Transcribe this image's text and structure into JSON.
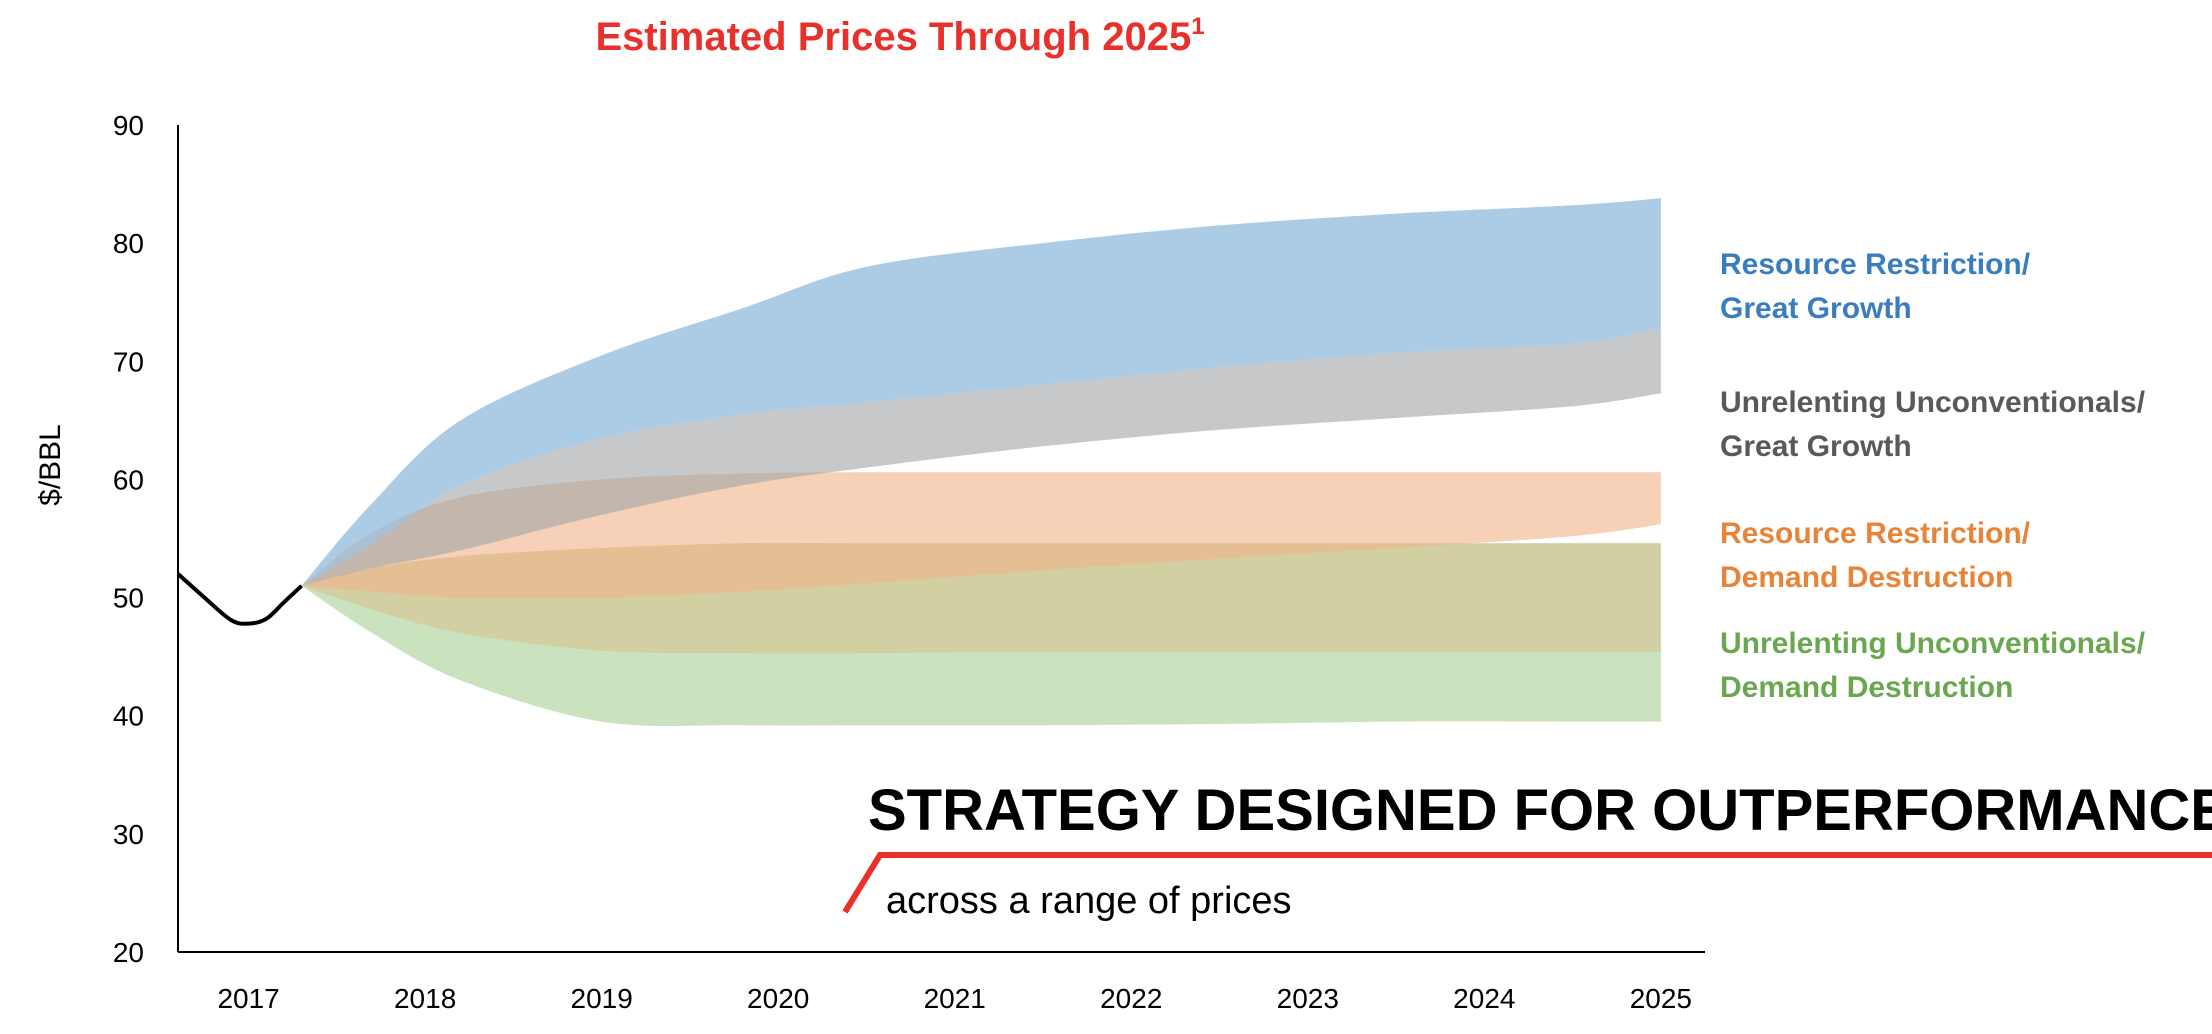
{
  "chart_data": {
    "type": "area",
    "title": "Estimated Prices Through 2025",
    "title_superscript": "1",
    "title_color": "#e8312a",
    "ylabel": "$/BBL",
    "xlabel": "",
    "ylim": [
      20,
      90
    ],
    "yticks": [
      "20",
      "30",
      "40",
      "50",
      "60",
      "70",
      "80",
      "90"
    ],
    "xlim": [
      2016.6,
      2025.25
    ],
    "xticks": [
      "2017",
      "2018",
      "2019",
      "2020",
      "2021",
      "2022",
      "2023",
      "2024",
      "2025"
    ],
    "grid": false,
    "historical": {
      "x": [
        2016.6,
        2016.75,
        2016.9,
        2017.0,
        2017.1,
        2017.2,
        2017.3
      ],
      "y": [
        52,
        50,
        48.1,
        47.8,
        48.2,
        49.6,
        51
      ]
    },
    "series": [
      {
        "name": "Resource Restriction/ Great Growth",
        "legend_lines": [
          "Resource Restriction/",
          "Great Growth"
        ],
        "color": "#3a7dbf",
        "fill": "#8cb8db",
        "opacity": 0.72,
        "x": [
          2017.3,
          2017.7,
          2018.2,
          2019.0,
          2019.8,
          2020.5,
          2021.5,
          2022.5,
          2023.5,
          2024.5,
          2025.0
        ],
        "upper": [
          51,
          58,
          65,
          70.5,
          74.5,
          78,
          80,
          81.5,
          82.5,
          83.2,
          83.8
        ],
        "lower": [
          51,
          54.5,
          59.5,
          63.5,
          65.5,
          66.5,
          68,
          69.5,
          70.7,
          71.5,
          72.8
        ]
      },
      {
        "name": "Unrelenting Unconventionals/ Great Growth",
        "legend_lines": [
          "Unrelenting Unconventionals/",
          "Great Growth"
        ],
        "color": "#595959",
        "fill": "#a0a3a6",
        "opacity": 0.6,
        "x": [
          2017.3,
          2017.7,
          2018.2,
          2019.0,
          2019.8,
          2020.5,
          2021.5,
          2022.5,
          2023.5,
          2024.5,
          2025.0
        ],
        "upper": [
          51,
          54.5,
          59.5,
          63.5,
          65.5,
          66.5,
          68,
          69.5,
          70.7,
          71.5,
          72.8
        ],
        "lower": [
          51,
          52.5,
          54,
          57,
          59.5,
          61,
          62.8,
          64.2,
          65.2,
          66.2,
          67.3
        ]
      },
      {
        "name": "Resource Restriction/ Demand Destruction",
        "legend_lines": [
          "Resource Restriction/",
          "Demand Destruction"
        ],
        "color": "#e8843a",
        "fill": "#f0b48a",
        "opacity": 0.62,
        "x": [
          2017.3,
          2017.7,
          2018.2,
          2019.0,
          2019.8,
          2020.5,
          2021.5,
          2022.5,
          2023.5,
          2024.5,
          2025.0
        ],
        "upper": [
          51,
          55.5,
          58.5,
          60,
          60.5,
          60.6,
          60.6,
          60.6,
          60.6,
          60.6,
          60.6
        ],
        "lower": [
          51,
          50.5,
          50,
          50,
          50.5,
          51.2,
          52.3,
          53.3,
          54.2,
          55.2,
          56.2
        ]
      },
      {
        "name": "Unrelenting Unconventionals/ Demand Destruction",
        "legend_lines": [
          "Unrelenting Unconventionals/",
          "Demand Destruction"
        ],
        "color": "#6aa84f",
        "fill": "#a9cf93",
        "opacity": 0.6,
        "x": [
          2017.3,
          2017.7,
          2018.2,
          2019.0,
          2019.8,
          2020.5,
          2021.5,
          2022.5,
          2023.5,
          2024.5,
          2025.0
        ],
        "upper": [
          51,
          52.5,
          53.5,
          54.2,
          54.6,
          54.6,
          54.6,
          54.6,
          54.6,
          54.6,
          54.6
        ],
        "lower": [
          51,
          47,
          43,
          39.5,
          39.2,
          39.2,
          39.2,
          39.3,
          39.5,
          39.5,
          39.5
        ]
      }
    ],
    "tan_band": {
      "fill": "#d9c08a",
      "opacity": 0.55,
      "x": [
        2017.3,
        2017.7,
        2018.2,
        2019.0,
        2019.8,
        2020.5,
        2021.5,
        2022.5,
        2023.5,
        2024.5,
        2025.0
      ],
      "upper": [
        51,
        52.5,
        53.5,
        54.2,
        54.6,
        54.6,
        54.6,
        54.6,
        54.6,
        54.6,
        54.6
      ],
      "lower": [
        51,
        49,
        47,
        45.5,
        45.3,
        45.3,
        45.4,
        45.4,
        45.4,
        45.4,
        45.4
      ]
    },
    "legend_placement": "right"
  },
  "annotation": {
    "headline": "STRATEGY DESIGNED FOR OUTPERFORMANCE",
    "subline": "across a range of prices",
    "accent_color": "#e8312a"
  }
}
